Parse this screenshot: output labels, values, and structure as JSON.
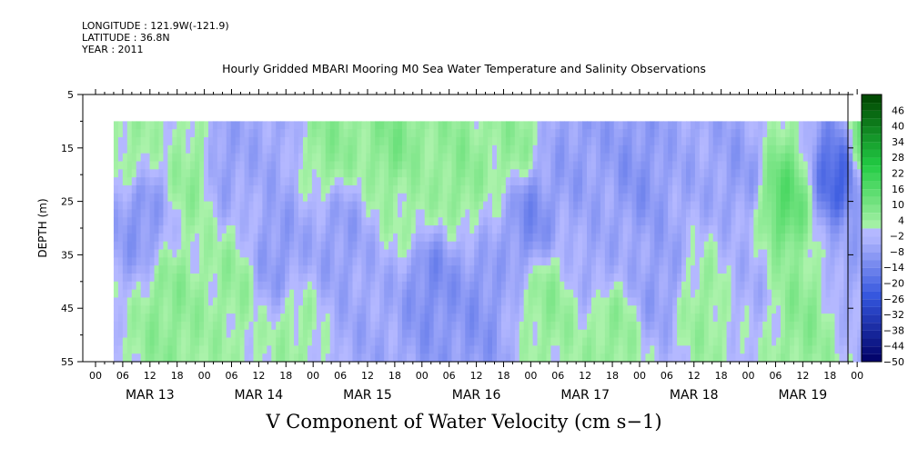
{
  "header": {
    "longitude": "LONGITUDE : 121.9W(-121.9)",
    "latitude": "LATITUDE : 36.8N",
    "year": "YEAR : 2011"
  },
  "chart_data": {
    "type": "heatmap",
    "title": "Hourly Gridded MBARI Mooring M0 Sea Water Temperature and Salinity Observations",
    "xlabel": "V Component of Water Velocity (cm s−1)",
    "ylabel": "DEPTH (m)",
    "ylim": [
      5,
      55
    ],
    "y_inverted": true,
    "y_ticks": [
      5,
      15,
      25,
      35,
      45,
      55
    ],
    "data_depth_range": [
      10,
      55
    ],
    "x_hour_ticks": [
      "00",
      "06",
      "12",
      "18",
      "00",
      "06",
      "12",
      "18",
      "00",
      "06",
      "12",
      "18",
      "00",
      "06",
      "12",
      "18",
      "00",
      "06",
      "12",
      "18",
      "00",
      "06",
      "12",
      "18",
      "00",
      "06",
      "12",
      "18",
      "00"
    ],
    "x_day_labels": [
      "MAR 13",
      "MAR 14",
      "MAR 15",
      "MAR 16",
      "MAR 17",
      "MAR 18",
      "MAR 19"
    ],
    "data_start_hour": 4,
    "data_end_hour": 171,
    "colorbar": {
      "labels": [
        46,
        40,
        34,
        28,
        22,
        16,
        10,
        4,
        -2,
        -8,
        -14,
        -20,
        -26,
        -32,
        -38,
        -44,
        -50
      ],
      "range": [
        -50,
        52
      ],
      "colors": {
        "dark_negative": "#000066",
        "mid_negative": "#3355dd",
        "light_negative": "#b4b8ff",
        "light_positive": "#aaf2aa",
        "mid_positive": "#22cc44",
        "dark_positive": "#004400"
      }
    },
    "field_description_per_day": [
      {
        "day": "MAR 13",
        "dominant": "mixed green/blue, blue near 20-35 m"
      },
      {
        "day": "MAR 14",
        "dominant": "blue shallow, green deeper"
      },
      {
        "day": "MAR 15",
        "dominant": "green upper, blue lower"
      },
      {
        "day": "MAR 16",
        "dominant": "green upper, blue mid/lower"
      },
      {
        "day": "MAR 17",
        "dominant": "blue shallow-mid, green deep"
      },
      {
        "day": "MAR 18",
        "dominant": "blue dominant with green streaks"
      },
      {
        "day": "MAR 19",
        "dominant": "strong green upper, strong blue near 20-25 m at end"
      }
    ],
    "anchors": [
      {
        "hour": 8,
        "depth": 15,
        "value": 3
      },
      {
        "hour": 10,
        "depth": 28,
        "value": -10
      },
      {
        "hour": 16,
        "depth": 45,
        "value": 6
      },
      {
        "hour": 22,
        "depth": 20,
        "value": 5
      },
      {
        "hour": 28,
        "depth": 18,
        "value": -8
      },
      {
        "hour": 30,
        "depth": 40,
        "value": 4
      },
      {
        "hour": 38,
        "depth": 14,
        "value": -6
      },
      {
        "hour": 40,
        "depth": 35,
        "value": -9
      },
      {
        "hour": 44,
        "depth": 50,
        "value": 3
      },
      {
        "hour": 52,
        "depth": 14,
        "value": 6
      },
      {
        "hour": 54,
        "depth": 32,
        "value": -8
      },
      {
        "hour": 60,
        "depth": 48,
        "value": -6
      },
      {
        "hour": 66,
        "depth": 14,
        "value": 8
      },
      {
        "hour": 70,
        "depth": 25,
        "value": 3
      },
      {
        "hour": 74,
        "depth": 40,
        "value": -12
      },
      {
        "hour": 80,
        "depth": 20,
        "value": 6
      },
      {
        "hour": 84,
        "depth": 45,
        "value": -10
      },
      {
        "hour": 92,
        "depth": 14,
        "value": 5
      },
      {
        "hour": 96,
        "depth": 28,
        "value": -12
      },
      {
        "hour": 100,
        "depth": 44,
        "value": 5
      },
      {
        "hour": 106,
        "depth": 16,
        "value": -8
      },
      {
        "hour": 110,
        "depth": 35,
        "value": -6
      },
      {
        "hour": 114,
        "depth": 50,
        "value": 5
      },
      {
        "hour": 120,
        "depth": 20,
        "value": -10
      },
      {
        "hour": 124,
        "depth": 40,
        "value": -8
      },
      {
        "hour": 130,
        "depth": 14,
        "value": -6
      },
      {
        "hour": 134,
        "depth": 45,
        "value": 4
      },
      {
        "hour": 142,
        "depth": 20,
        "value": -8
      },
      {
        "hour": 144,
        "depth": 40,
        "value": -4
      },
      {
        "hour": 152,
        "depth": 25,
        "value": 14
      },
      {
        "hour": 156,
        "depth": 45,
        "value": 6
      },
      {
        "hour": 164,
        "depth": 20,
        "value": -22
      },
      {
        "hour": 166,
        "depth": 35,
        "value": -6
      },
      {
        "hour": 170,
        "depth": 14,
        "value": 12
      }
    ]
  }
}
